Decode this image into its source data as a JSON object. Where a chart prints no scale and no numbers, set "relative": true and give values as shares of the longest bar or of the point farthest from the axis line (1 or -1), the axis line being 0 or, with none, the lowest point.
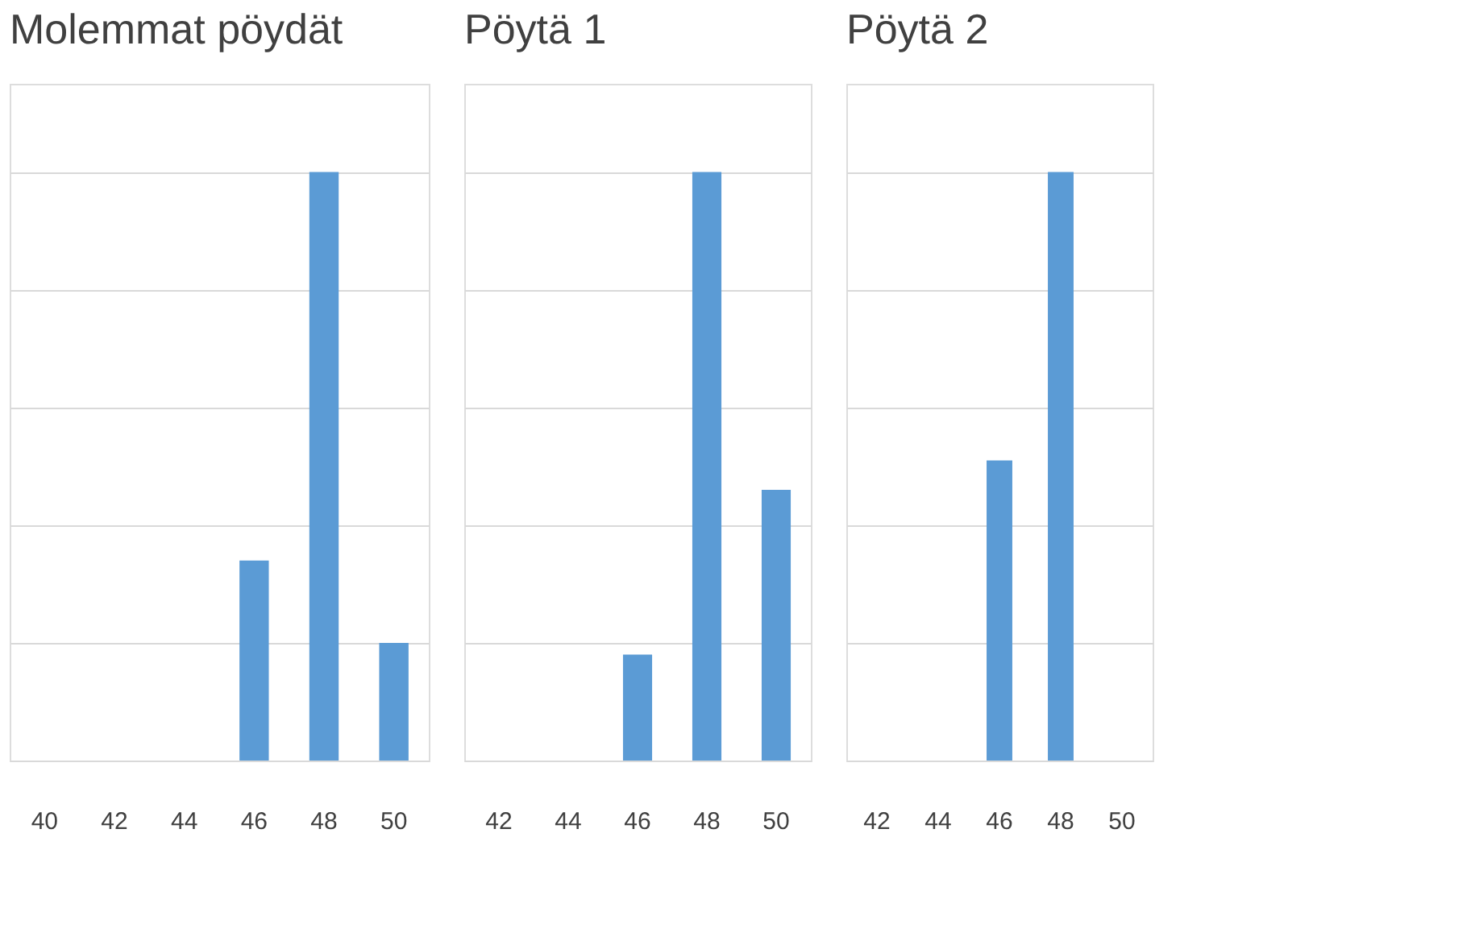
{
  "chart_data": [
    {
      "type": "bar",
      "title": "Molemmat pöydät",
      "relative": true,
      "grid": "y",
      "tick_labels": "x",
      "categories": [
        "40",
        "42",
        "44",
        "46",
        "48",
        "50"
      ],
      "series": [
        {
          "color": "#5b9bd5",
          "values": [
            0,
            0,
            0,
            0.34,
            1,
            0.2
          ]
        }
      ]
    },
    {
      "type": "bar",
      "title": "Pöytä 1",
      "relative": true,
      "grid": "y",
      "tick_labels": "x",
      "categories": [
        "42",
        "44",
        "46",
        "48",
        "50"
      ],
      "series": [
        {
          "color": "#5b9bd5",
          "values": [
            0,
            0,
            0.18,
            1,
            0.46
          ]
        }
      ]
    },
    {
      "type": "bar",
      "title": "Pöytä 2",
      "relative": true,
      "grid": "y",
      "tick_labels": "x",
      "categories": [
        "42",
        "44",
        "46",
        "48",
        "50"
      ],
      "series": [
        {
          "color": "#5b9bd5",
          "values": [
            0,
            0,
            0.51,
            1,
            null
          ]
        }
      ]
    }
  ]
}
